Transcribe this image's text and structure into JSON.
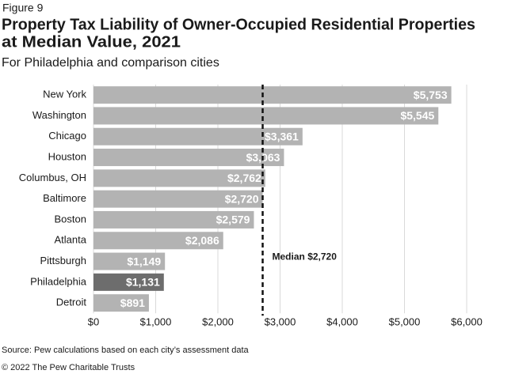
{
  "chart_data": {
    "type": "bar",
    "figure_label": "Figure 9",
    "title": [
      "Property Tax Liability of Owner-Occupied Residential Properties",
      "at Median Value, 2021"
    ],
    "subtitle": "For Philadelphia and comparison cities",
    "categories": [
      "New York",
      "Washington",
      "Chicago",
      "Houston",
      "Columbus, OH",
      "Baltimore",
      "Boston",
      "Atlanta",
      "Pittsburgh",
      "Philadelphia",
      "Detroit"
    ],
    "values": [
      5753,
      5545,
      3361,
      3063,
      2762,
      2720,
      2579,
      2086,
      1149,
      1131,
      891
    ],
    "value_labels": [
      "$5,753",
      "$5,545",
      "$3,361",
      "$3,063",
      "$2,762",
      "$2,720",
      "$2,579",
      "$2,086",
      "$1,149",
      "$1,131",
      "$891"
    ],
    "colors": [
      "#b3b3b3",
      "#b3b3b3",
      "#b3b3b3",
      "#b3b3b3",
      "#b3b3b3",
      "#b3b3b3",
      "#b3b3b3",
      "#b3b3b3",
      "#b3b3b3",
      "#6d6d6d",
      "#b3b3b3"
    ],
    "xlim": [
      0,
      6000
    ],
    "xticks": [
      {
        "value": 0,
        "label": "$0"
      },
      {
        "value": 1000,
        "label": "$1,000"
      },
      {
        "value": 2000,
        "label": "$2,000"
      },
      {
        "value": 3000,
        "label": "$3,000"
      },
      {
        "value": 4000,
        "label": "$4,000"
      },
      {
        "value": 5000,
        "label": "$5,000"
      },
      {
        "value": 6000,
        "label": "$6,000"
      }
    ],
    "grid": true,
    "median": {
      "value": 2720,
      "label": "Median $2,720"
    },
    "source": "Source: Pew calculations based on each city’s assessment data",
    "copyright": "© 2022 The Pew Charitable Trusts"
  }
}
